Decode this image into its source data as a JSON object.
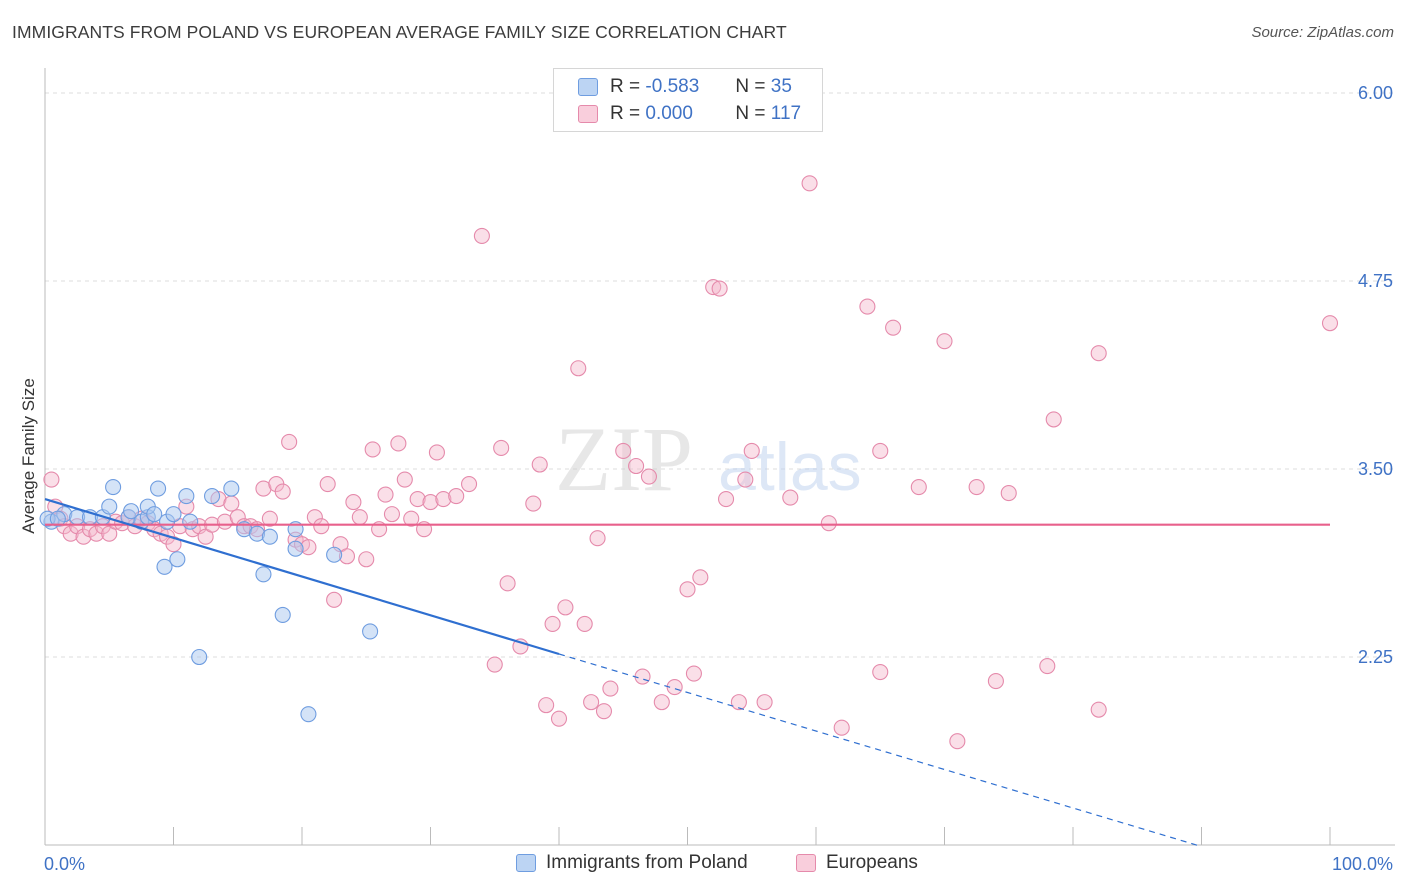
{
  "header": {
    "title": "IMMIGRANTS FROM POLAND VS EUROPEAN AVERAGE FAMILY SIZE CORRELATION CHART",
    "source": "Source: ZipAtlas.com"
  },
  "watermark": {
    "zip": "ZIP",
    "atlas": "atlas"
  },
  "legend": {
    "rows": [
      {
        "r_label": "R =",
        "r_value": "-0.583",
        "n_label": "N =",
        "n_value": "35"
      },
      {
        "r_label": "R =",
        "r_value": "0.000",
        "n_label": "N =",
        "n_value": "117"
      }
    ]
  },
  "bottom_legend": {
    "series0": "Immigrants from Poland",
    "series1": "Europeans"
  },
  "colors": {
    "blue_fill": "#a9c7ef",
    "blue_stroke": "#6f9de0",
    "blue_line": "#2f6fd0",
    "pink_fill": "#f5b9cd",
    "pink_stroke": "#e58aab",
    "pink_line": "#e8608c",
    "tick": "#3f72c5",
    "grid": "#dddddd"
  },
  "chart_data": {
    "type": "scatter",
    "title": "IMMIGRANTS FROM POLAND VS EUROPEAN AVERAGE FAMILY SIZE CORRELATION CHART",
    "xlabel": "",
    "ylabel": "Average Family Size",
    "xlim": [
      0,
      100
    ],
    "ylim": [
      1.0,
      6.1
    ],
    "x_tick_labels": [
      "0.0%",
      "100.0%"
    ],
    "y_ticks": [
      2.25,
      3.5,
      4.75,
      6.0
    ],
    "y_tick_labels": [
      "2.25",
      "3.50",
      "4.75",
      "6.00"
    ],
    "grid": true,
    "series": [
      {
        "name": "Immigrants from Poland",
        "color": "#6f9de0",
        "points": [
          [
            0.5,
            3.15
          ],
          [
            1.5,
            3.2
          ],
          [
            2.5,
            3.18
          ],
          [
            3.5,
            3.18
          ],
          [
            4.5,
            3.18
          ],
          [
            5,
            3.25
          ],
          [
            5.3,
            3.38
          ],
          [
            6.5,
            3.18
          ],
          [
            6.7,
            3.22
          ],
          [
            7.5,
            3.15
          ],
          [
            8,
            3.18
          ],
          [
            8,
            3.25
          ],
          [
            8.5,
            3.2
          ],
          [
            9.5,
            3.15
          ],
          [
            8.8,
            3.37
          ],
          [
            9.3,
            2.85
          ],
          [
            10,
            3.2
          ],
          [
            10.3,
            2.9
          ],
          [
            11,
            3.32
          ],
          [
            11.3,
            3.15
          ],
          [
            12,
            2.25
          ],
          [
            13,
            3.32
          ],
          [
            14.5,
            3.37
          ],
          [
            15.5,
            3.1
          ],
          [
            16.5,
            3.07
          ],
          [
            17,
            2.8
          ],
          [
            17.5,
            3.05
          ],
          [
            18.5,
            2.53
          ],
          [
            19.5,
            2.97
          ],
          [
            19.5,
            3.1
          ],
          [
            20.5,
            1.87
          ],
          [
            22.5,
            2.93
          ],
          [
            25.3,
            2.42
          ],
          [
            0.2,
            3.17
          ],
          [
            1,
            3.17
          ]
        ]
      },
      {
        "name": "Europeans",
        "color": "#e58aab",
        "points": [
          [
            0.5,
            3.43
          ],
          [
            0.8,
            3.25
          ],
          [
            1.2,
            3.17
          ],
          [
            1.5,
            3.12
          ],
          [
            2,
            3.07
          ],
          [
            2.5,
            3.12
          ],
          [
            3,
            3.05
          ],
          [
            3.5,
            3.1
          ],
          [
            4,
            3.07
          ],
          [
            4.5,
            3.12
          ],
          [
            5,
            3.07
          ],
          [
            5.5,
            3.15
          ],
          [
            6,
            3.14
          ],
          [
            6.5,
            3.18
          ],
          [
            7,
            3.12
          ],
          [
            7.5,
            3.17
          ],
          [
            8,
            3.14
          ],
          [
            8.5,
            3.1
          ],
          [
            9,
            3.07
          ],
          [
            9.5,
            3.05
          ],
          [
            10,
            3.0
          ],
          [
            10.5,
            3.12
          ],
          [
            11,
            3.25
          ],
          [
            11.5,
            3.1
          ],
          [
            12,
            3.12
          ],
          [
            12.5,
            3.05
          ],
          [
            13,
            3.13
          ],
          [
            13.5,
            3.3
          ],
          [
            14,
            3.15
          ],
          [
            14.5,
            3.27
          ],
          [
            15,
            3.18
          ],
          [
            15.5,
            3.12
          ],
          [
            16,
            3.12
          ],
          [
            16.5,
            3.1
          ],
          [
            17,
            3.37
          ],
          [
            17.5,
            3.17
          ],
          [
            18,
            3.4
          ],
          [
            18.5,
            3.35
          ],
          [
            19,
            3.68
          ],
          [
            19.5,
            3.03
          ],
          [
            20,
            3.0
          ],
          [
            20.5,
            2.98
          ],
          [
            21,
            3.18
          ],
          [
            21.5,
            3.12
          ],
          [
            22,
            3.4
          ],
          [
            22.5,
            2.63
          ],
          [
            23,
            3.0
          ],
          [
            23.5,
            2.92
          ],
          [
            24,
            3.28
          ],
          [
            24.5,
            3.18
          ],
          [
            25,
            2.9
          ],
          [
            25.5,
            3.63
          ],
          [
            26,
            3.1
          ],
          [
            26.5,
            3.33
          ],
          [
            27,
            3.2
          ],
          [
            27.5,
            3.67
          ],
          [
            28,
            3.43
          ],
          [
            28.5,
            3.17
          ],
          [
            29,
            3.3
          ],
          [
            29.5,
            3.1
          ],
          [
            30,
            3.28
          ],
          [
            30.5,
            3.61
          ],
          [
            31,
            3.3
          ],
          [
            32,
            3.32
          ],
          [
            33,
            3.4
          ],
          [
            34,
            5.05
          ],
          [
            35,
            2.2
          ],
          [
            35.5,
            3.64
          ],
          [
            36,
            2.74
          ],
          [
            37,
            2.32
          ],
          [
            38,
            3.27
          ],
          [
            38.5,
            3.53
          ],
          [
            39,
            1.93
          ],
          [
            39.5,
            2.47
          ],
          [
            40,
            1.84
          ],
          [
            40.5,
            2.58
          ],
          [
            41.5,
            4.17
          ],
          [
            42,
            2.47
          ],
          [
            42.5,
            1.95
          ],
          [
            43,
            3.04
          ],
          [
            43.5,
            1.89
          ],
          [
            44,
            2.04
          ],
          [
            45,
            3.62
          ],
          [
            46,
            3.52
          ],
          [
            46.5,
            2.12
          ],
          [
            47,
            3.45
          ],
          [
            48,
            1.95
          ],
          [
            49,
            2.05
          ],
          [
            50,
            2.7
          ],
          [
            50.5,
            2.14
          ],
          [
            51,
            2.78
          ],
          [
            52,
            4.71
          ],
          [
            52.5,
            4.7
          ],
          [
            53,
            3.3
          ],
          [
            54,
            1.95
          ],
          [
            54.5,
            3.43
          ],
          [
            55,
            3.62
          ],
          [
            56,
            1.95
          ],
          [
            58,
            3.31
          ],
          [
            59.5,
            5.4
          ],
          [
            62,
            1.78
          ],
          [
            64,
            4.58
          ],
          [
            65,
            2.15
          ],
          [
            65,
            3.62
          ],
          [
            66,
            4.44
          ],
          [
            68,
            3.38
          ],
          [
            70,
            4.35
          ],
          [
            71,
            1.69
          ],
          [
            72.5,
            3.38
          ],
          [
            74,
            2.09
          ],
          [
            75,
            3.34
          ],
          [
            78,
            2.19
          ],
          [
            78.5,
            3.83
          ],
          [
            82,
            4.27
          ],
          [
            82,
            1.9
          ],
          [
            100,
            4.47
          ],
          [
            61,
            3.14
          ]
        ]
      }
    ],
    "trend_lines": [
      {
        "series": "Immigrants from Poland",
        "solid_from": [
          0,
          3.3
        ],
        "solid_to": [
          40,
          2.27
        ],
        "dashed_to": [
          90,
          0.99
        ]
      },
      {
        "series": "Europeans",
        "from": [
          0,
          3.13
        ],
        "to": [
          100,
          3.13
        ]
      }
    ]
  }
}
